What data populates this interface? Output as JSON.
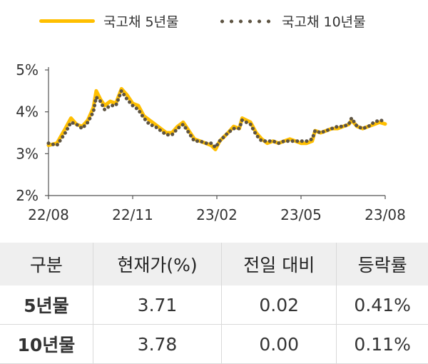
{
  "chart_data": {
    "type": "line",
    "x_ticks": [
      "22/08",
      "22/11",
      "23/02",
      "23/05",
      "23/08"
    ],
    "y_ticks": [
      "2%",
      "3%",
      "4%",
      "5%"
    ],
    "ylim": [
      2,
      5
    ],
    "xlim": [
      0,
      12
    ],
    "grid": false,
    "legend_position": "top",
    "series": [
      {
        "name": "국고채 5년물",
        "color": "#ffbf00",
        "style": "solid",
        "points": [
          [
            0,
            3.2
          ],
          [
            0.3,
            3.25
          ],
          [
            0.6,
            3.6
          ],
          [
            0.8,
            3.85
          ],
          [
            1.0,
            3.7
          ],
          [
            1.2,
            3.65
          ],
          [
            1.4,
            3.8
          ],
          [
            1.6,
            4.1
          ],
          [
            1.7,
            4.5
          ],
          [
            1.85,
            4.3
          ],
          [
            2.0,
            4.15
          ],
          [
            2.2,
            4.25
          ],
          [
            2.4,
            4.2
          ],
          [
            2.6,
            4.55
          ],
          [
            2.8,
            4.4
          ],
          [
            3.0,
            4.2
          ],
          [
            3.2,
            4.15
          ],
          [
            3.4,
            3.9
          ],
          [
            3.6,
            3.8
          ],
          [
            3.8,
            3.7
          ],
          [
            4.0,
            3.6
          ],
          [
            4.2,
            3.5
          ],
          [
            4.4,
            3.5
          ],
          [
            4.6,
            3.65
          ],
          [
            4.8,
            3.75
          ],
          [
            5.0,
            3.55
          ],
          [
            5.2,
            3.35
          ],
          [
            5.4,
            3.3
          ],
          [
            5.6,
            3.25
          ],
          [
            5.8,
            3.2
          ],
          [
            5.95,
            3.1
          ],
          [
            6.1,
            3.3
          ],
          [
            6.4,
            3.5
          ],
          [
            6.6,
            3.65
          ],
          [
            6.8,
            3.6
          ],
          [
            6.9,
            3.85
          ],
          [
            7.05,
            3.8
          ],
          [
            7.2,
            3.75
          ],
          [
            7.4,
            3.5
          ],
          [
            7.6,
            3.35
          ],
          [
            7.8,
            3.25
          ],
          [
            8.0,
            3.3
          ],
          [
            8.2,
            3.25
          ],
          [
            8.4,
            3.3
          ],
          [
            8.6,
            3.35
          ],
          [
            8.8,
            3.3
          ],
          [
            9.0,
            3.25
          ],
          [
            9.2,
            3.25
          ],
          [
            9.4,
            3.3
          ],
          [
            9.5,
            3.55
          ],
          [
            9.7,
            3.5
          ],
          [
            9.9,
            3.55
          ],
          [
            10.1,
            3.6
          ],
          [
            10.3,
            3.6
          ],
          [
            10.5,
            3.65
          ],
          [
            10.7,
            3.7
          ],
          [
            10.8,
            3.8
          ],
          [
            11.0,
            3.65
          ],
          [
            11.2,
            3.6
          ],
          [
            11.4,
            3.65
          ],
          [
            11.6,
            3.7
          ],
          [
            11.8,
            3.75
          ],
          [
            12.0,
            3.71
          ]
        ]
      },
      {
        "name": "국고채 10년물",
        "color": "#5e5443",
        "style": "dotted",
        "points": [
          [
            0,
            3.25
          ],
          [
            0.3,
            3.2
          ],
          [
            0.6,
            3.5
          ],
          [
            0.8,
            3.75
          ],
          [
            1.0,
            3.7
          ],
          [
            1.2,
            3.6
          ],
          [
            1.4,
            3.75
          ],
          [
            1.6,
            4.0
          ],
          [
            1.7,
            4.35
          ],
          [
            1.85,
            4.25
          ],
          [
            2.0,
            4.05
          ],
          [
            2.2,
            4.15
          ],
          [
            2.4,
            4.15
          ],
          [
            2.6,
            4.5
          ],
          [
            2.8,
            4.3
          ],
          [
            3.0,
            4.15
          ],
          [
            3.2,
            4.05
          ],
          [
            3.4,
            3.85
          ],
          [
            3.6,
            3.7
          ],
          [
            3.8,
            3.65
          ],
          [
            4.0,
            3.55
          ],
          [
            4.2,
            3.45
          ],
          [
            4.4,
            3.45
          ],
          [
            4.6,
            3.6
          ],
          [
            4.8,
            3.7
          ],
          [
            5.0,
            3.5
          ],
          [
            5.2,
            3.3
          ],
          [
            5.4,
            3.3
          ],
          [
            5.6,
            3.25
          ],
          [
            5.8,
            3.25
          ],
          [
            5.95,
            3.15
          ],
          [
            6.1,
            3.3
          ],
          [
            6.4,
            3.5
          ],
          [
            6.6,
            3.6
          ],
          [
            6.8,
            3.6
          ],
          [
            6.9,
            3.8
          ],
          [
            7.05,
            3.75
          ],
          [
            7.2,
            3.7
          ],
          [
            7.4,
            3.45
          ],
          [
            7.6,
            3.3
          ],
          [
            7.8,
            3.3
          ],
          [
            8.0,
            3.3
          ],
          [
            8.2,
            3.25
          ],
          [
            8.4,
            3.3
          ],
          [
            8.6,
            3.3
          ],
          [
            8.8,
            3.3
          ],
          [
            9.0,
            3.3
          ],
          [
            9.2,
            3.3
          ],
          [
            9.4,
            3.35
          ],
          [
            9.5,
            3.55
          ],
          [
            9.7,
            3.5
          ],
          [
            9.9,
            3.55
          ],
          [
            10.1,
            3.6
          ],
          [
            10.3,
            3.65
          ],
          [
            10.5,
            3.65
          ],
          [
            10.7,
            3.7
          ],
          [
            10.8,
            3.85
          ],
          [
            11.0,
            3.65
          ],
          [
            11.2,
            3.6
          ],
          [
            11.4,
            3.65
          ],
          [
            11.6,
            3.75
          ],
          [
            11.8,
            3.8
          ],
          [
            12.0,
            3.78
          ]
        ]
      }
    ]
  },
  "table": {
    "headers": [
      "구분",
      "현재가(%)",
      "전일 대비",
      "등락률"
    ],
    "rows": [
      [
        "5년물",
        "3.71",
        "0.02",
        "0.41%"
      ],
      [
        "10년물",
        "3.78",
        "0.00",
        "0.11%"
      ]
    ]
  }
}
